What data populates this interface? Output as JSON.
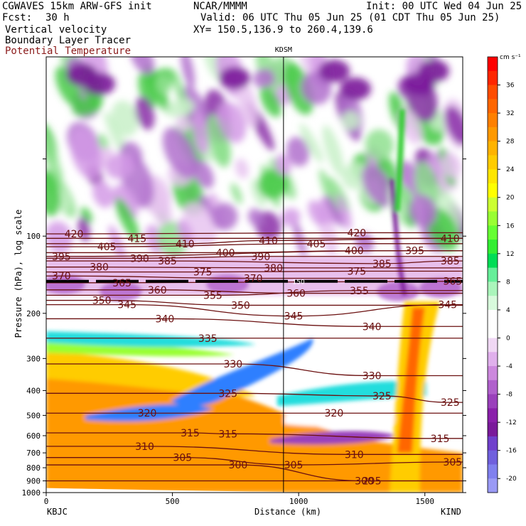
{
  "header": {
    "model": "CGWAVES 15km ARW-GFS init",
    "org": "NCAR/MMMM",
    "init": "Init: 00 UTC Wed 04 Jun 25",
    "fcst_label": "Fcst:",
    "fcst_value": "30 h",
    "valid": "Valid: 06 UTC Thu 05 Jun 25 (01 CDT Thu 05 Jun 25)",
    "fields": [
      "Vertical velocity",
      "Boundary Layer Tracer"
    ],
    "field_contour": "Potential Temperature",
    "xy": "XY= 150.5,136.9 to 260.4,139.6"
  },
  "chart_data": {
    "type": "heatmap",
    "title": "KDSM",
    "xlabel": "Distance (km)",
    "ylabel": "Pressure (hPa), log scale",
    "xlim": [
      0,
      1650
    ],
    "ylim": [
      1000,
      20
    ],
    "y_scale": "log",
    "x_ticks": [
      0,
      500,
      1000,
      1500
    ],
    "y_ticks": [
      100,
      200,
      300,
      400,
      500,
      600,
      700,
      800,
      900,
      1000
    ],
    "left_endpoint": "KBJC",
    "right_endpoint": "KIND",
    "station_marker": {
      "name": "KDSM",
      "x": 940
    },
    "tropopause_marker_label": "150",
    "colorbar": {
      "unit": "cm s⁻¹",
      "tick_labels": [
        "36",
        "32",
        "28",
        "24",
        "20",
        "16",
        "12",
        "8",
        "4",
        "0",
        "-4",
        "-8",
        "-12",
        "-16",
        "-20"
      ],
      "colors": [
        "#ff0000",
        "#ff2600",
        "#ff4c00",
        "#ff6600",
        "#ff8000",
        "#ff9900",
        "#ffb300",
        "#ffcc00",
        "#ffe600",
        "#ffff00",
        "#ccff33",
        "#99ff33",
        "#66ff33",
        "#33ee33",
        "#00dd55",
        "#66ee99",
        "#aaf5bb",
        "#d8fadc",
        "#ffffff",
        "#ffffff",
        "#f0d8f4",
        "#e0b0ec",
        "#cc88dd",
        "#b060cc",
        "#9a40bb",
        "#8a20aa",
        "#7a1a9a",
        "#7040cc",
        "#7060dd",
        "#8080ee",
        "#9a9af5"
      ]
    },
    "isentropes": [
      {
        "theta": 295,
        "label_x": [
          1290
        ],
        "label_p": [
          900
        ]
      },
      {
        "theta": 300,
        "label_x": [
          760,
          1260
        ],
        "label_p": [
          780,
          900
        ]
      },
      {
        "theta": 305,
        "label_x": [
          540,
          980,
          1610
        ],
        "label_p": [
          730,
          780,
          760
        ]
      },
      {
        "theta": 310,
        "label_x": [
          390,
          1220
        ],
        "label_p": [
          660,
          710
        ]
      },
      {
        "theta": 315,
        "label_x": [
          570,
          720,
          1560
        ],
        "label_p": [
          585,
          590,
          615
        ]
      },
      {
        "theta": 320,
        "label_x": [
          400,
          1140
        ],
        "label_p": [
          490,
          490
        ]
      },
      {
        "theta": 325,
        "label_x": [
          720,
          1330,
          1600
        ],
        "label_p": [
          410,
          420,
          445
        ]
      },
      {
        "theta": 330,
        "label_x": [
          740,
          1290
        ],
        "label_p": [
          315,
          350
        ]
      },
      {
        "theta": 335,
        "label_x": [
          640
        ],
        "label_p": [
          250
        ]
      },
      {
        "theta": 340,
        "label_x": [
          470,
          1290
        ],
        "label_p": [
          210,
          225
        ]
      },
      {
        "theta": 345,
        "label_x": [
          320,
          980,
          1590
        ],
        "label_p": [
          185,
          205,
          185
        ]
      },
      {
        "theta": 350,
        "label_x": [
          220,
          770
        ],
        "label_p": [
          178,
          186
        ]
      },
      {
        "theta": 355,
        "label_x": [
          660,
          1240
        ],
        "label_p": [
          170,
          163
        ]
      },
      {
        "theta": 360,
        "label_x": [
          440,
          990
        ],
        "label_p": [
          162,
          167
        ]
      },
      {
        "theta": 365,
        "label_x": [
          300,
          1610
        ],
        "label_p": [
          152,
          150
        ]
      },
      {
        "theta": 370,
        "label_x": [
          60,
          820
        ],
        "label_p": [
          143,
          146
        ]
      },
      {
        "theta": 375,
        "label_x": [
          620,
          1230
        ],
        "label_p": [
          138,
          137
        ]
      },
      {
        "theta": 380,
        "label_x": [
          210,
          900
        ],
        "label_p": [
          132,
          133
        ]
      },
      {
        "theta": 385,
        "label_x": [
          480,
          1330,
          1600
        ],
        "label_p": [
          125,
          128,
          125
        ]
      },
      {
        "theta": 390,
        "label_x": [
          370,
          850
        ],
        "label_p": [
          122,
          120
        ]
      },
      {
        "theta": 395,
        "label_x": [
          60,
          1460
        ],
        "label_p": [
          120,
          114
        ]
      },
      {
        "theta": 400,
        "label_x": [
          710,
          1220
        ],
        "label_p": [
          116,
          114
        ]
      },
      {
        "theta": 405,
        "label_x": [
          240,
          1070
        ],
        "label_p": [
          110,
          107
        ]
      },
      {
        "theta": 410,
        "label_x": [
          550,
          880,
          1600
        ],
        "label_p": [
          107,
          104,
          102
        ]
      },
      {
        "theta": 415,
        "label_x": [
          360
        ],
        "label_p": [
          102
        ]
      },
      {
        "theta": 420,
        "label_x": [
          110,
          1230
        ],
        "label_p": [
          98,
          97
        ]
      }
    ]
  }
}
